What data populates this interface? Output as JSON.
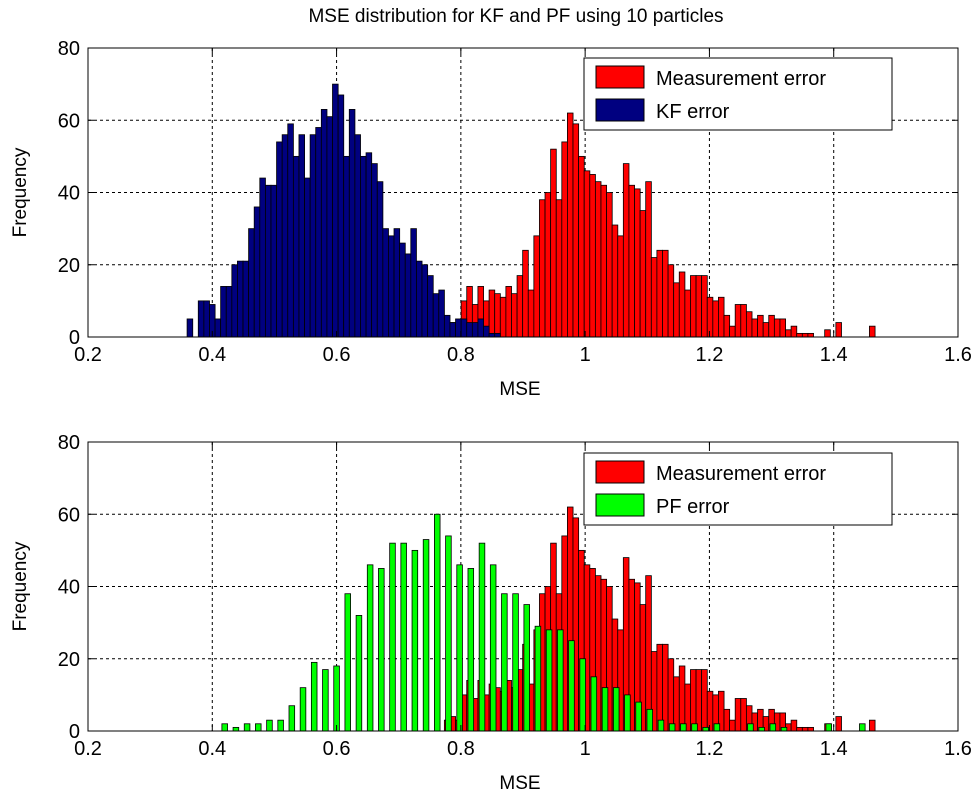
{
  "figure_title": "MSE distribution for KF and PF using 10 particles",
  "colors": {
    "measurement": "#ff0000",
    "kf": "#000080",
    "pf": "#00ff00",
    "grid": "#000000",
    "background": "#ffffff"
  },
  "chart_data": [
    {
      "type": "histogram-bar",
      "title": "MSE distribution for KF and PF using 10 particles",
      "xlabel": "MSE",
      "ylabel": "Frequency",
      "xlim": [
        0.2,
        1.6
      ],
      "ylim": [
        0,
        80
      ],
      "xticks": [
        "0.2",
        "0.4",
        "0.6",
        "0.8",
        "1",
        "1.2",
        "1.4",
        "1.6"
      ],
      "yticks": [
        "0",
        "20",
        "40",
        "60",
        "80"
      ],
      "grid": true,
      "legend_position": "top-right",
      "bin_width": 0.0091,
      "series": [
        {
          "name": "Measurement error",
          "color": "#ff0000",
          "bins": [
            [
              0.778,
              3
            ],
            [
              0.787,
              4
            ],
            [
              0.796,
              3
            ],
            [
              0.805,
              10
            ],
            [
              0.814,
              14
            ],
            [
              0.823,
              9
            ],
            [
              0.832,
              14
            ],
            [
              0.841,
              10
            ],
            [
              0.85,
              13
            ],
            [
              0.859,
              12
            ],
            [
              0.868,
              11
            ],
            [
              0.877,
              14
            ],
            [
              0.886,
              12
            ],
            [
              0.895,
              17
            ],
            [
              0.904,
              24
            ],
            [
              0.913,
              13
            ],
            [
              0.922,
              28
            ],
            [
              0.931,
              38
            ],
            [
              0.94,
              40
            ],
            [
              0.949,
              52
            ],
            [
              0.958,
              38
            ],
            [
              0.967,
              54
            ],
            [
              0.976,
              62
            ],
            [
              0.985,
              59
            ],
            [
              0.994,
              50
            ],
            [
              1.003,
              46
            ],
            [
              1.012,
              45
            ],
            [
              1.021,
              43
            ],
            [
              1.03,
              42
            ],
            [
              1.039,
              40
            ],
            [
              1.048,
              31
            ],
            [
              1.057,
              28
            ],
            [
              1.066,
              48
            ],
            [
              1.075,
              42
            ],
            [
              1.084,
              41
            ],
            [
              1.093,
              35
            ],
            [
              1.102,
              43
            ],
            [
              1.111,
              22
            ],
            [
              1.12,
              24
            ],
            [
              1.129,
              24
            ],
            [
              1.138,
              20
            ],
            [
              1.147,
              15
            ],
            [
              1.156,
              18
            ],
            [
              1.165,
              13
            ],
            [
              1.174,
              17
            ],
            [
              1.183,
              17
            ],
            [
              1.192,
              17
            ],
            [
              1.201,
              11
            ],
            [
              1.21,
              10
            ],
            [
              1.219,
              11
            ],
            [
              1.228,
              6
            ],
            [
              1.237,
              3
            ],
            [
              1.246,
              9
            ],
            [
              1.255,
              9
            ],
            [
              1.264,
              7
            ],
            [
              1.273,
              5
            ],
            [
              1.282,
              6
            ],
            [
              1.291,
              4
            ],
            [
              1.3,
              6
            ],
            [
              1.309,
              5
            ],
            [
              1.318,
              5
            ],
            [
              1.327,
              2
            ],
            [
              1.336,
              3
            ],
            [
              1.345,
              1
            ],
            [
              1.354,
              1
            ],
            [
              1.363,
              1
            ],
            [
              1.372,
              0
            ],
            [
              1.381,
              0
            ],
            [
              1.39,
              2
            ],
            [
              1.399,
              0
            ],
            [
              1.408,
              4
            ],
            [
              1.417,
              0
            ],
            [
              1.426,
              0
            ],
            [
              1.435,
              0
            ],
            [
              1.444,
              0
            ],
            [
              1.453,
              0
            ],
            [
              1.462,
              3
            ]
          ]
        },
        {
          "name": "KF error",
          "color": "#000080",
          "bins": [
            [
              0.364,
              5
            ],
            [
              0.373,
              0
            ],
            [
              0.382,
              10
            ],
            [
              0.391,
              10
            ],
            [
              0.4,
              9
            ],
            [
              0.409,
              5
            ],
            [
              0.418,
              14
            ],
            [
              0.427,
              14
            ],
            [
              0.436,
              20
            ],
            [
              0.445,
              21
            ],
            [
              0.454,
              21
            ],
            [
              0.463,
              30
            ],
            [
              0.472,
              36
            ],
            [
              0.481,
              44
            ],
            [
              0.49,
              42
            ],
            [
              0.499,
              42
            ],
            [
              0.508,
              54
            ],
            [
              0.517,
              56
            ],
            [
              0.526,
              59
            ],
            [
              0.535,
              50
            ],
            [
              0.544,
              56
            ],
            [
              0.553,
              44
            ],
            [
              0.562,
              56
            ],
            [
              0.571,
              58
            ],
            [
              0.58,
              63
            ],
            [
              0.589,
              61
            ],
            [
              0.598,
              70
            ],
            [
              0.607,
              67
            ],
            [
              0.616,
              50
            ],
            [
              0.625,
              63
            ],
            [
              0.634,
              56
            ],
            [
              0.643,
              50
            ],
            [
              0.652,
              51
            ],
            [
              0.661,
              48
            ],
            [
              0.67,
              43
            ],
            [
              0.679,
              30
            ],
            [
              0.688,
              28
            ],
            [
              0.697,
              30
            ],
            [
              0.706,
              26
            ],
            [
              0.715,
              23
            ],
            [
              0.724,
              30
            ],
            [
              0.733,
              21
            ],
            [
              0.742,
              20
            ],
            [
              0.751,
              17
            ],
            [
              0.76,
              12
            ],
            [
              0.769,
              13
            ],
            [
              0.778,
              6
            ],
            [
              0.787,
              4
            ],
            [
              0.796,
              5
            ],
            [
              0.805,
              5
            ],
            [
              0.814,
              4
            ],
            [
              0.823,
              4
            ],
            [
              0.832,
              5
            ],
            [
              0.841,
              3
            ],
            [
              0.85,
              1
            ],
            [
              0.859,
              1
            ],
            [
              0.868,
              0
            ],
            [
              0.877,
              0
            ]
          ]
        }
      ]
    },
    {
      "type": "histogram-bar",
      "title": "",
      "xlabel": "MSE",
      "ylabel": "Frequency",
      "xlim": [
        0.2,
        1.6
      ],
      "ylim": [
        0,
        80
      ],
      "xticks": [
        "0.2",
        "0.4",
        "0.6",
        "0.8",
        "1",
        "1.2",
        "1.4",
        "1.6"
      ],
      "yticks": [
        "0",
        "20",
        "40",
        "60",
        "80"
      ],
      "grid": true,
      "legend_position": "top-right",
      "series": [
        {
          "name": "Measurement error",
          "color": "#ff0000",
          "bins": [
            [
              0.778,
              3
            ],
            [
              0.787,
              4
            ],
            [
              0.796,
              3
            ],
            [
              0.805,
              10
            ],
            [
              0.814,
              14
            ],
            [
              0.823,
              9
            ],
            [
              0.832,
              14
            ],
            [
              0.841,
              10
            ],
            [
              0.85,
              13
            ],
            [
              0.859,
              12
            ],
            [
              0.868,
              11
            ],
            [
              0.877,
              14
            ],
            [
              0.886,
              12
            ],
            [
              0.895,
              17
            ],
            [
              0.904,
              24
            ],
            [
              0.913,
              13
            ],
            [
              0.922,
              28
            ],
            [
              0.931,
              38
            ],
            [
              0.94,
              40
            ],
            [
              0.949,
              52
            ],
            [
              0.958,
              38
            ],
            [
              0.967,
              54
            ],
            [
              0.976,
              62
            ],
            [
              0.985,
              59
            ],
            [
              0.994,
              50
            ],
            [
              1.003,
              46
            ],
            [
              1.012,
              45
            ],
            [
              1.021,
              43
            ],
            [
              1.03,
              42
            ],
            [
              1.039,
              40
            ],
            [
              1.048,
              31
            ],
            [
              1.057,
              28
            ],
            [
              1.066,
              48
            ],
            [
              1.075,
              42
            ],
            [
              1.084,
              41
            ],
            [
              1.093,
              35
            ],
            [
              1.102,
              43
            ],
            [
              1.111,
              22
            ],
            [
              1.12,
              24
            ],
            [
              1.129,
              24
            ],
            [
              1.138,
              20
            ],
            [
              1.147,
              15
            ],
            [
              1.156,
              18
            ],
            [
              1.165,
              13
            ],
            [
              1.174,
              17
            ],
            [
              1.183,
              17
            ],
            [
              1.192,
              17
            ],
            [
              1.201,
              11
            ],
            [
              1.21,
              10
            ],
            [
              1.219,
              11
            ],
            [
              1.228,
              6
            ],
            [
              1.237,
              3
            ],
            [
              1.246,
              9
            ],
            [
              1.255,
              9
            ],
            [
              1.264,
              7
            ],
            [
              1.273,
              5
            ],
            [
              1.282,
              6
            ],
            [
              1.291,
              4
            ],
            [
              1.3,
              6
            ],
            [
              1.309,
              5
            ],
            [
              1.318,
              5
            ],
            [
              1.327,
              2
            ],
            [
              1.336,
              3
            ],
            [
              1.345,
              1
            ],
            [
              1.354,
              1
            ],
            [
              1.363,
              1
            ],
            [
              1.372,
              0
            ],
            [
              1.381,
              0
            ],
            [
              1.39,
              2
            ],
            [
              1.399,
              0
            ],
            [
              1.408,
              4
            ],
            [
              1.417,
              0
            ],
            [
              1.426,
              0
            ],
            [
              1.435,
              0
            ],
            [
              1.444,
              0
            ],
            [
              1.453,
              0
            ],
            [
              1.462,
              3
            ]
          ]
        },
        {
          "name": "PF error",
          "color": "#00ff00",
          "bins": [
            [
              0.42,
              2
            ],
            [
              0.438,
              1
            ],
            [
              0.456,
              2
            ],
            [
              0.474,
              2
            ],
            [
              0.492,
              3
            ],
            [
              0.51,
              3
            ],
            [
              0.528,
              7
            ],
            [
              0.546,
              12
            ],
            [
              0.564,
              19
            ],
            [
              0.582,
              17
            ],
            [
              0.6,
              18
            ],
            [
              0.618,
              38
            ],
            [
              0.636,
              32
            ],
            [
              0.654,
              46
            ],
            [
              0.672,
              45
            ],
            [
              0.69,
              52
            ],
            [
              0.708,
              52
            ],
            [
              0.726,
              50
            ],
            [
              0.744,
              53
            ],
            [
              0.762,
              60
            ],
            [
              0.78,
              54
            ],
            [
              0.798,
              46
            ],
            [
              0.816,
              45
            ],
            [
              0.834,
              52
            ],
            [
              0.852,
              46
            ],
            [
              0.87,
              38
            ],
            [
              0.888,
              38
            ],
            [
              0.906,
              35
            ],
            [
              0.924,
              29
            ],
            [
              0.942,
              28
            ],
            [
              0.96,
              28
            ],
            [
              0.978,
              25
            ],
            [
              0.996,
              20
            ],
            [
              1.014,
              15
            ],
            [
              1.032,
              12
            ],
            [
              1.05,
              12
            ],
            [
              1.068,
              10
            ],
            [
              1.086,
              8
            ],
            [
              1.104,
              6
            ],
            [
              1.122,
              3
            ],
            [
              1.14,
              2
            ],
            [
              1.158,
              2
            ],
            [
              1.176,
              2
            ],
            [
              1.194,
              1
            ],
            [
              1.212,
              2
            ],
            [
              1.23,
              0
            ],
            [
              1.248,
              0
            ],
            [
              1.266,
              2
            ],
            [
              1.284,
              1
            ],
            [
              1.302,
              2
            ],
            [
              1.32,
              1
            ],
            [
              1.338,
              0
            ],
            [
              1.356,
              0
            ],
            [
              1.374,
              0
            ],
            [
              1.392,
              2
            ],
            [
              1.41,
              0
            ],
            [
              1.428,
              0
            ],
            [
              1.446,
              2
            ]
          ]
        }
      ]
    }
  ]
}
